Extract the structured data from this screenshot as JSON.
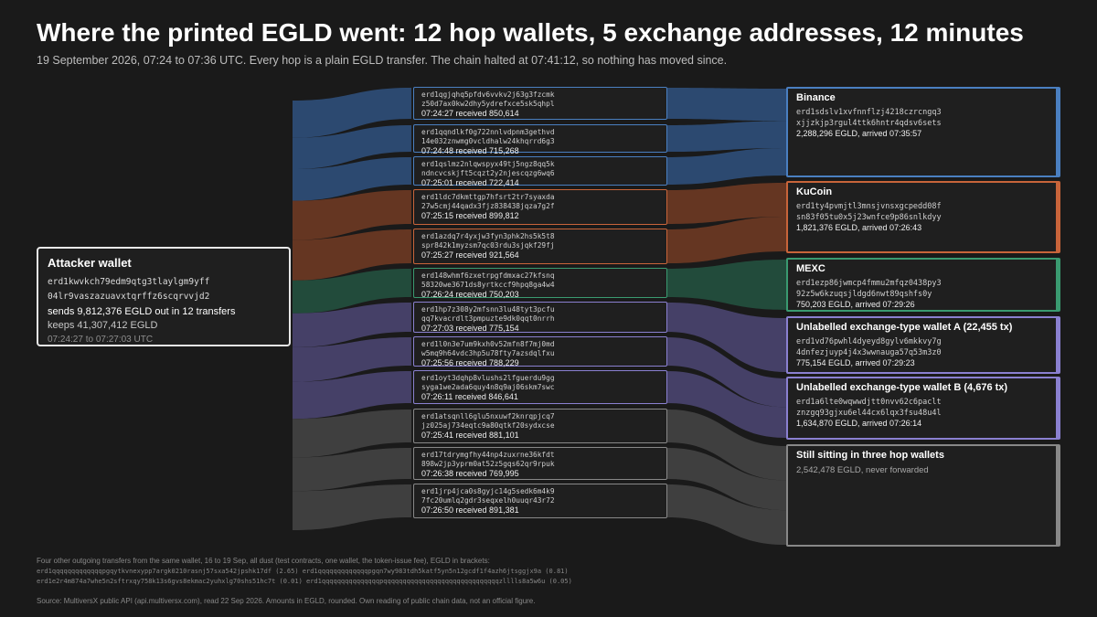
{
  "title": "Where the printed EGLD went: 12 hop wallets, 5 exchange addresses, 12 minutes",
  "subtitle": "19 September 2026, 07:24 to 07:36 UTC. Every hop is a plain EGLD transfer. The chain halted at 07:41:12, so nothing has moved since.",
  "source": {
    "title": "Attacker wallet",
    "addr1": "erd1kwvkch79edm9qtg3tlaylgm9yff",
    "addr2": "04lr9vaszazuavxtqrffz6scqrvvjd2",
    "sends": "sends 9,812,376 EGLD out in 12 transfers",
    "keeps": "keeps 41,307,412 EGLD",
    "time": "07:24:27 to 07:27:03 UTC"
  },
  "hops": [
    {
      "addr1": "erd1qgjqhq5pfdv6vvkv2j63g3fzcmk",
      "addr2": "z50d7ax0kw2dhy5ydrefxce5sk5qhpl",
      "info": "07:24:27 received 850,614",
      "amount": 850614,
      "dest": 0,
      "color": "#2f4f7a",
      "border": "#4a7fc0"
    },
    {
      "addr1": "erd1qqndlkf0g722nnlvdpnm3gethvd",
      "addr2": "14e032znwmg0vcldhalw24khqrrd6g3",
      "info": "07:24:48 received 715,268",
      "amount": 715268,
      "dest": 0,
      "color": "#2f4f7a",
      "border": "#4a7fc0"
    },
    {
      "addr1": "erd1qslmz2nlqwspyx49tj5ngz8qq5k",
      "addr2": "ndncvcskjft5cqzt2y2njescqzg6wq6",
      "info": "07:25:01 received 722,414",
      "amount": 722414,
      "dest": 0,
      "color": "#2f4f7a",
      "border": "#4a7fc0"
    },
    {
      "addr1": "erd1ldc7dkmttgp7hfsrt2tr7syaxda",
      "addr2": "27w5cmj44qadx3fjz838438jqza7g2f",
      "info": "07:25:15 received 899,812",
      "amount": 899812,
      "dest": 1,
      "color": "#6e3a24",
      "border": "#c8643a"
    },
    {
      "addr1": "erd1azdq7r4yxjw3fyn3phk2hs5k5t8",
      "addr2": "spr842k1myzsm7qc03rdu3sjqkf29fj",
      "info": "07:25:27 received 921,564",
      "amount": 921564,
      "dest": 1,
      "color": "#6e3a24",
      "border": "#c8643a"
    },
    {
      "addr1": "erd148whmf6zxetrpgfdmxac27kfsnq",
      "addr2": "58320we3671ds8yrtkccf9hpq8ga4w4",
      "info": "07:26:24 received 750,203",
      "amount": 750203,
      "dest": 2,
      "color": "#24513f",
      "border": "#3a9a70"
    },
    {
      "addr1": "erd1hp7z308y2mfsnn3lu48tyt3pcfu",
      "addr2": "qq7kvacrdlt3pmpuzte9dk0qqt0nrrh",
      "info": "07:27:03 received 775,154",
      "amount": 775154,
      "dest": 3,
      "color": "#4a4570",
      "border": "#8a80d0"
    },
    {
      "addr1": "erd1l0n3e7um9kxh0v52mfn8f7mj0md",
      "addr2": "w5mq9h64vdc3hp5u78fty7azsdqlfxu",
      "info": "07:25:56 received 788,229",
      "amount": 788229,
      "dest": 4,
      "color": "#4a4570",
      "border": "#8a80d0"
    },
    {
      "addr1": "erd1oyt3dqhp8vlushs2lfguerdu9gg",
      "addr2": "syga1we2ada6quy4n8q9aj06skm7swc",
      "info": "07:26:11 received 846,641",
      "amount": 846641,
      "dest": 4,
      "color": "#4a4570",
      "border": "#8a80d0"
    },
    {
      "addr1": "erd1atsqnll6glu5nxuwf2knrqpjcq7",
      "addr2": "jz025aj734eqtc9a80qtkf20sydxcse",
      "info": "07:25:41 received 881,101",
      "amount": 881101,
      "dest": 5,
      "color": "#444444",
      "border": "#888888"
    },
    {
      "addr1": "erd17tdrymgfhy44np4zuxrne36kfdt",
      "addr2": "898w2jp3yprm0at52z5gqs62qr9rpuk",
      "info": "07:26:38 received 769,995",
      "amount": 769995,
      "dest": 5,
      "color": "#444444",
      "border": "#888888"
    },
    {
      "addr1": "erd1jrp4jca0s8gyjc14g5sedk6m4k9",
      "addr2": "7fc20umlq2gdr3seqxelh0uuqr43r72",
      "info": "07:26:50 received 891,381",
      "amount": 891381,
      "dest": 5,
      "color": "#444444",
      "border": "#888888"
    }
  ],
  "destinations": [
    {
      "title": "Binance",
      "addr1": "erd1sdslv1xvfnnflzj4218czrcngq3",
      "addr2": "xjjzkjp3rgul4ttk6hntr4qdsv6sets",
      "info": "2,288,296 EGLD, arrived 07:35:57",
      "amount": 2288296,
      "color": "#2f4f7a",
      "border": "#4a7fc0"
    },
    {
      "title": "KuCoin",
      "addr1": "erd1ty4pvmjtl3mnsjvnsxgcpedd08f",
      "addr2": "sn83f05tu0x5j23wnfce9p86snlkdyy",
      "info": "1,821,376 EGLD, arrived 07:26:43",
      "amount": 1821376,
      "color": "#6e3a24",
      "border": "#c8643a"
    },
    {
      "title": "MEXC",
      "addr1": "erd1ezp86jwmcp4fmmu2mfqz0438py3",
      "addr2": "92z5w6kzuqsjldgd6nwt89qshfs0y",
      "info": "750,203 EGLD, arrived 07:29:26",
      "amount": 750203,
      "color": "#24513f",
      "border": "#3a9a70"
    },
    {
      "title": "Unlabelled exchange-type wallet A (22,455 tx)",
      "addr1": "erd1vd76pwhl4dyeyd8gylv6mkkvy7g",
      "addr2": "4dnfezjuyp4j4x3wwnauga57q53m3z0",
      "info": "775,154 EGLD, arrived 07:29:23",
      "amount": 775154,
      "color": "#4a4570",
      "border": "#8a80d0"
    },
    {
      "title": "Unlabelled exchange-type wallet B (4,676 tx)",
      "addr1": "erd1a6lte0wqwwdjtt0nvv62c6paclt",
      "addr2": "znzgq93gjxu6el44cx6lqx3fsu48u4l",
      "info": "1,634,870 EGLD, arrived 07:26:14",
      "amount": 1634870,
      "color": "#4a4570",
      "border": "#8a80d0"
    },
    {
      "title": "Still sitting in three hop wallets",
      "sub": "2,542,478 EGLD, never forwarded",
      "amount": 2542478,
      "color": "#444444",
      "border": "#888888"
    }
  ],
  "footnote": "Four other outgoing transfers from the same wallet, 16 to 19 Sep, all dust (test contracts, one wallet, the token-issue fee), EGLD in brackets:",
  "dust_lines": [
    "erd1qqqqqqqqqqqqqpgqytkvnexypp7argk0210rasnj57sxa542jpshk17df (2.65)  erd1qqqqqqqqqqqqqpgqn7wy983tdh5katf5yn5n12gcdf1f4azh6jtsggjx9a (0.81)",
    "erd1e2r4m874a7whe5n2sftrxqy758k13s6gvs8ekmac2yuhxlg70shs51hc7t (0.01)  erd1qqqqqqqqqqqqqqqpqqqqqqqqqqqqqqqqqqqqqqqqqqqqqqzlllls8a5w6u (0.05)"
  ],
  "source_note": "Source: MultiversX public API (api.multiversx.com), read 22 Sep 2026. Amounts in EGLD, rounded. Own reading of public chain data, not an official figure."
}
